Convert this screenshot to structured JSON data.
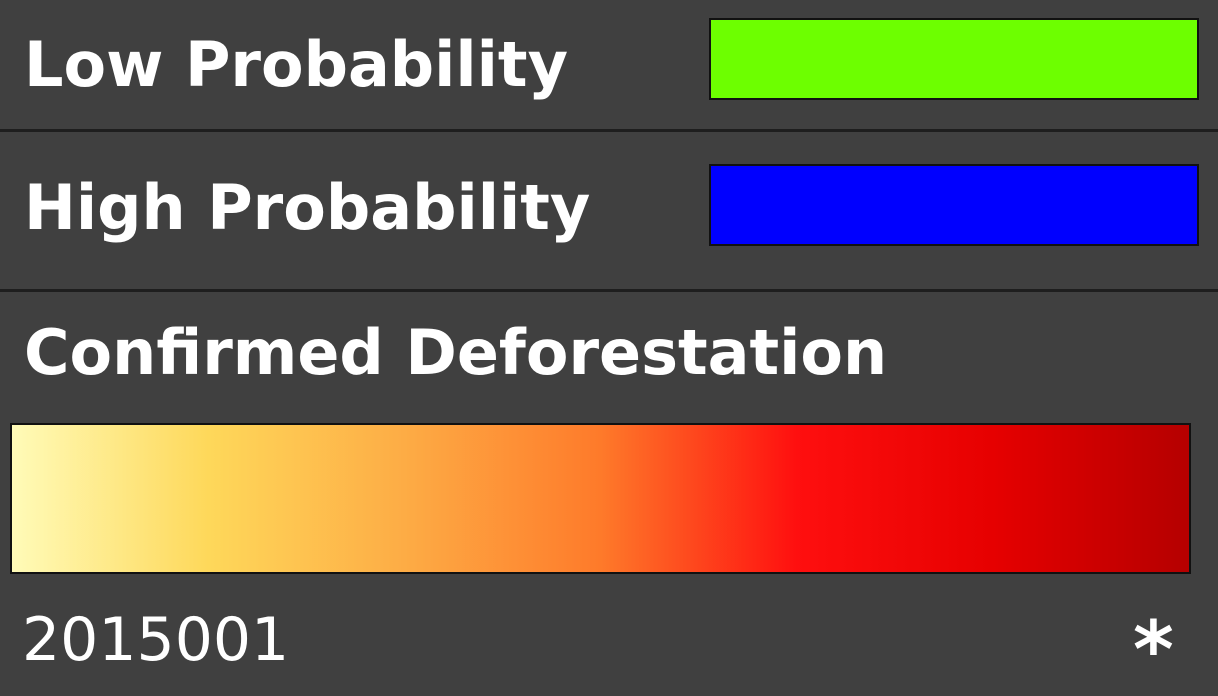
{
  "legend": {
    "low_probability": {
      "label": "Low Probability",
      "color": "#6dff00"
    },
    "high_probability": {
      "label": "High Probability",
      "color": "#0000ff"
    },
    "confirmed_deforestation": {
      "label": "Confirmed Deforestation",
      "gradient_colors": [
        "#fffbb8",
        "#fed85a",
        "#fdac45",
        "#fe7a2a",
        "#ff0f0f",
        "#e60000",
        "#b50000"
      ]
    },
    "date_label": "2015001",
    "asterisk": "*"
  },
  "colors": {
    "background": "#404040",
    "divider": "#1e1e1e",
    "text": "#ffffff"
  }
}
